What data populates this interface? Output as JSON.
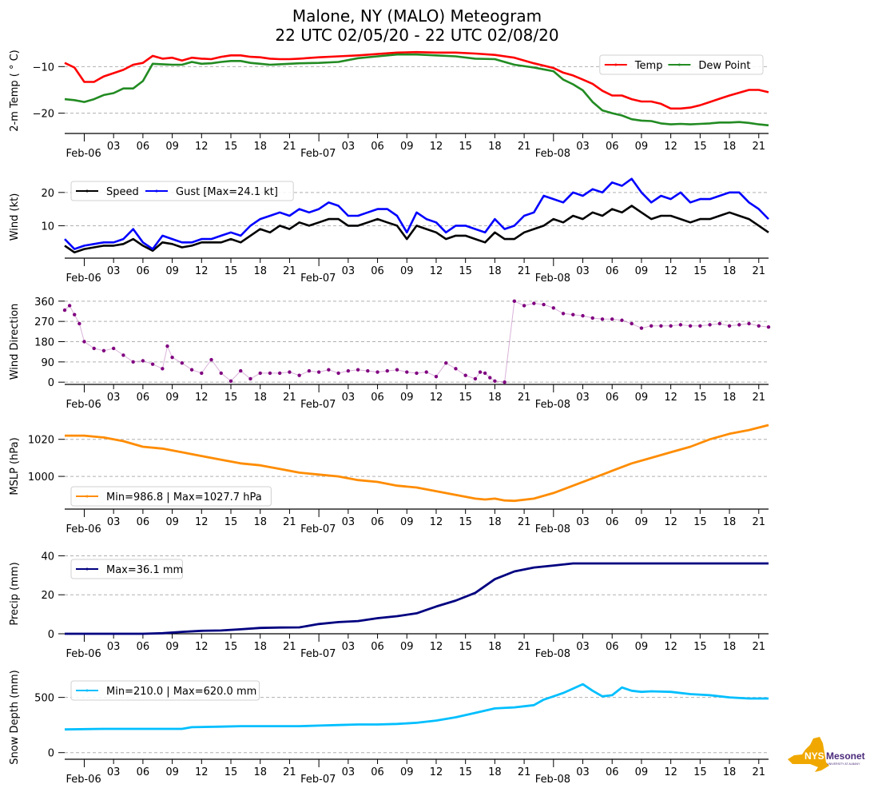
{
  "title_line1": "Malone, NY (MALO) Meteogram",
  "title_line2": "22 UTC 02/05/20 - 22 UTC 02/08/20",
  "logo": {
    "text_nys": "NYS",
    "text_mesonet": "Mesonet",
    "text_sub": "UNIVERSITY AT ALBANY",
    "state_color": "#f0a800",
    "text_color": "#4b2a7b"
  },
  "chart_data": [
    {
      "type": "line",
      "name": "temperature",
      "ylabel": "2-m Temp ( ° C)",
      "ylim": [
        -23.5,
        -6
      ],
      "yticks": [
        -20,
        -10
      ],
      "ytick_labels": [
        "−20",
        "−10"
      ],
      "grid": true,
      "legend": "top-right",
      "legend_ncol": 2,
      "x_hours_from_start": [
        0,
        1,
        2,
        3,
        4,
        5,
        6,
        7,
        8,
        9,
        10,
        11,
        12,
        13,
        14,
        15,
        16,
        17,
        18,
        19,
        20,
        21,
        22,
        23,
        24,
        26,
        28,
        30,
        32,
        34,
        36,
        38,
        40,
        42,
        44,
        46,
        48,
        49,
        50,
        51,
        52,
        53,
        54,
        55,
        56,
        57,
        58,
        59,
        60,
        61,
        62,
        63,
        64,
        65,
        66,
        67,
        68,
        69,
        70,
        71,
        72
      ],
      "series": [
        {
          "name": "Temp",
          "color": "#ff0000",
          "values": [
            -9.2,
            -10.2,
            -13.3,
            -13.3,
            -12.1,
            -11.4,
            -10.7,
            -9.6,
            -9.2,
            -7.7,
            -8.3,
            -8.1,
            -8.7,
            -8.1,
            -8.3,
            -8.4,
            -7.9,
            -7.6,
            -7.6,
            -7.9,
            -8.0,
            -8.3,
            -8.4,
            -8.4,
            -8.3,
            -8.0,
            -7.8,
            -7.6,
            -7.3,
            -7.0,
            -6.9,
            -7.0,
            -7.0,
            -7.2,
            -7.5,
            -8.1,
            -9.3,
            -9.8,
            -10.3,
            -11.3,
            -11.9,
            -12.8,
            -13.7,
            -15.2,
            -16.2,
            -16.2,
            -17.0,
            -17.5,
            -17.5,
            -18.0,
            -19.0,
            -19.0,
            -18.8,
            -18.3,
            -17.6,
            -16.9,
            -16.2,
            -15.6,
            -15.0,
            -15.0,
            -15.5
          ]
        },
        {
          "name": "Dew Point",
          "color": "#228b22",
          "values": [
            -17.0,
            -17.2,
            -17.6,
            -17.0,
            -16.1,
            -15.7,
            -14.7,
            -14.7,
            -13.1,
            -9.4,
            -9.5,
            -9.6,
            -9.6,
            -9.0,
            -9.4,
            -9.3,
            -9.0,
            -8.8,
            -8.8,
            -9.2,
            -9.4,
            -9.6,
            -9.5,
            -9.4,
            -9.3,
            -9.2,
            -9.0,
            -8.2,
            -7.8,
            -7.4,
            -7.4,
            -7.6,
            -7.8,
            -8.3,
            -8.4,
            -9.6,
            -10.2,
            -10.6,
            -11.0,
            -12.8,
            -13.8,
            -15.1,
            -17.6,
            -19.4,
            -20.0,
            -20.5,
            -21.3,
            -21.6,
            -21.7,
            -22.2,
            -22.4,
            -22.3,
            -22.4,
            -22.3,
            -22.2,
            -22.0,
            -22.0,
            -21.9,
            -22.1,
            -22.4,
            -22.6
          ]
        }
      ],
      "xtick_labels": [
        "Feb-06",
        "03",
        "06",
        "09",
        "12",
        "15",
        "18",
        "21",
        "Feb-07",
        "03",
        "06",
        "09",
        "12",
        "15",
        "18",
        "21",
        "Feb-08",
        "03",
        "06",
        "09",
        "12",
        "15",
        "18",
        "21"
      ]
    },
    {
      "type": "line",
      "name": "wind",
      "ylabel": "Wind (kt)",
      "ylim": [
        0.5,
        25
      ],
      "yticks": [
        10,
        20
      ],
      "ytick_labels": [
        "10",
        "20"
      ],
      "grid": true,
      "legend": "top-left",
      "legend_ncol": 2,
      "x_hours_from_start": [
        0,
        1,
        2,
        3,
        4,
        5,
        6,
        7,
        8,
        9,
        10,
        11,
        12,
        13,
        14,
        15,
        16,
        17,
        18,
        19,
        20,
        21,
        22,
        23,
        24,
        25,
        26,
        27,
        28,
        29,
        30,
        31,
        32,
        33,
        34,
        35,
        36,
        37,
        38,
        39,
        40,
        41,
        42,
        43,
        44,
        45,
        46,
        47,
        48,
        49,
        50,
        51,
        52,
        53,
        54,
        55,
        56,
        57,
        58,
        59,
        60,
        61,
        62,
        63,
        64,
        65,
        66,
        67,
        68,
        69,
        70,
        71,
        72
      ],
      "series": [
        {
          "name": "Speed",
          "color": "#000000",
          "values": [
            4,
            2,
            3,
            3.5,
            4,
            4,
            4.5,
            6,
            4,
            2.5,
            5,
            4.5,
            3.5,
            4,
            5,
            5,
            5,
            6,
            5,
            7,
            9,
            8,
            10,
            9,
            11,
            10,
            11,
            12,
            12,
            10,
            10,
            11,
            12,
            11,
            10,
            6,
            10,
            9,
            8,
            6,
            7,
            7,
            6,
            5,
            8,
            6,
            6,
            8,
            9,
            10,
            12,
            11,
            13,
            12,
            14,
            13,
            15,
            14,
            16,
            14,
            12,
            13,
            13,
            12,
            11,
            12,
            12,
            13,
            14,
            13,
            12,
            10,
            8
          ]
        },
        {
          "name": "Gust [Max=24.1 kt]",
          "color": "#0000ff",
          "values": [
            6,
            3,
            4,
            4.5,
            5,
            5,
            6,
            9,
            5,
            3,
            7,
            6,
            5,
            5,
            6,
            6,
            7,
            8,
            7,
            10,
            12,
            13,
            14,
            13,
            15,
            14,
            15,
            17,
            16,
            13,
            13,
            14,
            15,
            15,
            13,
            8,
            14,
            12,
            11,
            8,
            10,
            10,
            9,
            8,
            12,
            9,
            10,
            13,
            14,
            19,
            18,
            17,
            20,
            19,
            21,
            20,
            23,
            22,
            24.1,
            20,
            17,
            19,
            18,
            20,
            17,
            18,
            18,
            19,
            20,
            20,
            17,
            15,
            12
          ]
        }
      ],
      "xtick_labels": [
        "Feb-06",
        "03",
        "06",
        "09",
        "12",
        "15",
        "18",
        "21",
        "Feb-07",
        "03",
        "06",
        "09",
        "12",
        "15",
        "18",
        "21",
        "Feb-08",
        "03",
        "06",
        "09",
        "12",
        "15",
        "18",
        "21"
      ]
    },
    {
      "type": "scatter",
      "name": "wind_direction",
      "ylabel": "Wind Direction",
      "ylim": [
        -10,
        370
      ],
      "yticks": [
        0,
        90,
        180,
        270,
        360
      ],
      "ytick_labels": [
        "0",
        "90",
        "180",
        "270",
        "360"
      ],
      "grid": true,
      "color": "#800080",
      "x_hours_from_start": [
        0,
        0.5,
        1,
        1.5,
        2,
        3,
        4,
        5,
        6,
        7,
        8,
        9,
        10,
        10.5,
        11,
        12,
        13,
        14,
        15,
        16,
        17,
        18,
        19,
        20,
        21,
        22,
        23,
        24,
        25,
        26,
        27,
        28,
        29,
        30,
        31,
        32,
        33,
        34,
        35,
        36,
        37,
        38,
        39,
        40,
        41,
        42,
        42.5,
        43,
        43.5,
        44,
        45,
        46,
        47,
        48,
        49,
        50,
        51,
        52,
        53,
        54,
        55,
        56,
        57,
        58,
        59,
        60,
        61,
        62,
        63,
        64,
        65,
        66,
        67,
        68,
        69,
        70,
        71,
        72
      ],
      "values": [
        320,
        340,
        300,
        260,
        180,
        150,
        140,
        150,
        120,
        90,
        95,
        80,
        60,
        160,
        110,
        85,
        55,
        40,
        100,
        40,
        5,
        50,
        15,
        40,
        40,
        40,
        45,
        30,
        50,
        45,
        55,
        40,
        50,
        55,
        50,
        45,
        50,
        55,
        45,
        40,
        45,
        25,
        85,
        60,
        30,
        15,
        45,
        40,
        20,
        5,
        0,
        360,
        340,
        350,
        345,
        330,
        305,
        300,
        295,
        285,
        280,
        280,
        275,
        260,
        240,
        250,
        250,
        250,
        255,
        250,
        250,
        255,
        260,
        250,
        255,
        260,
        250,
        245,
        250,
        250
      ],
      "xtick_labels": [
        "Feb-06",
        "03",
        "06",
        "09",
        "12",
        "15",
        "18",
        "21",
        "Feb-07",
        "03",
        "06",
        "09",
        "12",
        "15",
        "18",
        "21",
        "Feb-08",
        "03",
        "06",
        "09",
        "12",
        "15",
        "18",
        "21"
      ]
    },
    {
      "type": "line",
      "name": "mslp",
      "ylabel": "MSLP (hPa)",
      "ylim": [
        984.5,
        1028.5
      ],
      "yticks": [
        1000,
        1020
      ],
      "ytick_labels": [
        "1000",
        "1020"
      ],
      "grid": true,
      "legend": "bottom-left",
      "color": "#ff8c00",
      "series": [
        {
          "name": "Min=986.8 | Max=1027.7 hPa",
          "color": "#ff8c00"
        }
      ],
      "x_hours_from_start": [
        0,
        2,
        4,
        6,
        8,
        10,
        12,
        14,
        16,
        18,
        20,
        22,
        24,
        26,
        28,
        30,
        32,
        34,
        36,
        38,
        40,
        42,
        43,
        44,
        45,
        46,
        48,
        50,
        52,
        54,
        56,
        58,
        60,
        62,
        64,
        66,
        68,
        70,
        72
      ],
      "values": [
        1022,
        1022,
        1021,
        1019,
        1016,
        1015,
        1013,
        1011,
        1009,
        1007,
        1006,
        1004,
        1002,
        1001,
        1000,
        998,
        997,
        995,
        994,
        992,
        990,
        988,
        987.5,
        988,
        987,
        986.8,
        988,
        991,
        995,
        999,
        1003,
        1007,
        1010,
        1013,
        1016,
        1020,
        1023,
        1025,
        1027.7
      ],
      "xtick_labels": [
        "Feb-06",
        "03",
        "06",
        "09",
        "12",
        "15",
        "18",
        "21",
        "Feb-07",
        "03",
        "06",
        "09",
        "12",
        "15",
        "18",
        "21",
        "Feb-08",
        "03",
        "06",
        "09",
        "12",
        "15",
        "18",
        "21"
      ]
    },
    {
      "type": "line",
      "name": "precip",
      "ylabel": "Precip (mm)",
      "ylim": [
        0,
        41
      ],
      "yticks": [
        0,
        20,
        40
      ],
      "ytick_labels": [
        "0",
        "20",
        "40"
      ],
      "grid": true,
      "legend": "top-left",
      "color": "#000080",
      "series": [
        {
          "name": "Max=36.1 mm",
          "color": "#000080"
        }
      ],
      "x_hours_from_start": [
        0,
        4,
        8,
        10,
        12,
        14,
        16,
        18,
        20,
        22,
        24,
        26,
        28,
        30,
        32,
        34,
        36,
        38,
        40,
        42,
        44,
        46,
        48,
        50,
        52,
        54,
        56,
        58,
        60,
        62,
        64,
        66,
        68,
        70,
        72
      ],
      "values": [
        0,
        0,
        0,
        0.3,
        1,
        1.5,
        1.7,
        2.3,
        3,
        3.2,
        3.3,
        5,
        6,
        6.5,
        8,
        9,
        10.5,
        14,
        17,
        21,
        28,
        32,
        34,
        35,
        36.1,
        36.1,
        36.1,
        36.1,
        36.1,
        36.1,
        36.1,
        36.1,
        36.1,
        36.1,
        36.1
      ],
      "xtick_labels": [
        "Feb-06",
        "03",
        "06",
        "09",
        "12",
        "15",
        "18",
        "21",
        "Feb-07",
        "03",
        "06",
        "09",
        "12",
        "15",
        "18",
        "21",
        "Feb-08",
        "03",
        "06",
        "09",
        "12",
        "15",
        "18",
        "21"
      ]
    },
    {
      "type": "line",
      "name": "snow_depth",
      "ylabel": "Snow Depth (mm)",
      "ylim": [
        -60,
        700
      ],
      "yticks": [
        0,
        500
      ],
      "ytick_labels": [
        "0",
        "500"
      ],
      "grid": true,
      "legend": "top-left",
      "color": "#00bfff",
      "series": [
        {
          "name": "Min=210.0 | Max=620.0 mm",
          "color": "#00bfff"
        }
      ],
      "x_hours_from_start": [
        0,
        4,
        8,
        12,
        13,
        16,
        18,
        20,
        22,
        24,
        26,
        28,
        30,
        32,
        34,
        36,
        38,
        40,
        42,
        44,
        46,
        48,
        49,
        50,
        51,
        52,
        53,
        54,
        55,
        56,
        57,
        58,
        59,
        60,
        62,
        64,
        66,
        68,
        70,
        72
      ],
      "values": [
        210,
        215,
        215,
        215,
        230,
        235,
        240,
        240,
        240,
        240,
        245,
        250,
        255,
        255,
        260,
        270,
        290,
        320,
        360,
        400,
        410,
        430,
        480,
        510,
        540,
        580,
        620,
        560,
        510,
        520,
        590,
        560,
        550,
        555,
        550,
        530,
        520,
        500,
        490,
        490
      ],
      "xtick_labels": [
        "Feb-06",
        "03",
        "06",
        "09",
        "12",
        "15",
        "18",
        "21",
        "Feb-07",
        "03",
        "06",
        "09",
        "12",
        "15",
        "18",
        "21",
        "Feb-08",
        "03",
        "06",
        "09",
        "12",
        "15",
        "18",
        "21"
      ]
    }
  ]
}
